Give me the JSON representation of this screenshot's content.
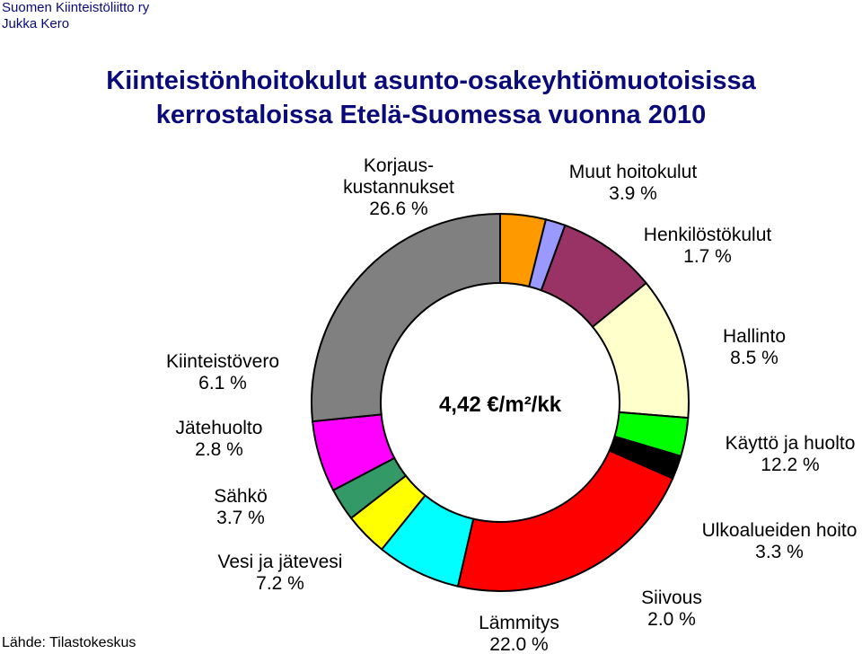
{
  "header": {
    "org_line1": "Suomen Kiinteistöliitto ry",
    "org_line2": "Jukka Kero"
  },
  "chart_data": {
    "type": "pie",
    "title_line1": "Kiinteistönhoitokulut asunto-osakeyhtiömuotoisissa",
    "title_line2": "kerrostaloissa Etelä-Suomessa vuonna 2010",
    "center_label": "4,42 €/m²/kk",
    "source": "Lähde: Tilastokeskus",
    "start": "top, clockwise",
    "slices": [
      {
        "label": "Muut hoitokulut",
        "value": 3.9,
        "value_label": "3.9 %",
        "color": "#FF9900"
      },
      {
        "label": "Henkilöstökulut",
        "value": 1.7,
        "value_label": "1.7 %",
        "color": "#9999FF"
      },
      {
        "label": "Hallinto",
        "value": 8.5,
        "value_label": "8.5 %",
        "color": "#993366"
      },
      {
        "label": "Käyttö ja huolto",
        "value": 12.2,
        "value_label": "12.2 %",
        "color": "#FFFFCC"
      },
      {
        "label": "Ulkoalueiden hoito",
        "value": 3.3,
        "value_label": "3.3 %",
        "color": "#00FF00"
      },
      {
        "label": "Siivous",
        "value": 2.0,
        "value_label": "2.0 %",
        "color": "#000000"
      },
      {
        "label": "Lämmitys",
        "value": 22.0,
        "value_label": "22.0 %",
        "color": "#FF0000"
      },
      {
        "label": "Vesi ja jätevesi",
        "value": 7.2,
        "value_label": "7.2 %",
        "color": "#00FFFF"
      },
      {
        "label": "Sähkö",
        "value": 3.7,
        "value_label": "3.7 %",
        "color": "#FFFF00"
      },
      {
        "label": "Jätehuolto",
        "value": 2.8,
        "value_label": "2.8 %",
        "color": "#339966"
      },
      {
        "label": "Kiinteistövero",
        "value": 6.1,
        "value_label": "6.1 %",
        "color": "#FF00FF"
      },
      {
        "label": "Korjauskustannukset",
        "label_lines": [
          "Korjaus-",
          "kustannukset"
        ],
        "value": 26.6,
        "value_label": "26.6 %",
        "color": "#808080"
      }
    ]
  }
}
